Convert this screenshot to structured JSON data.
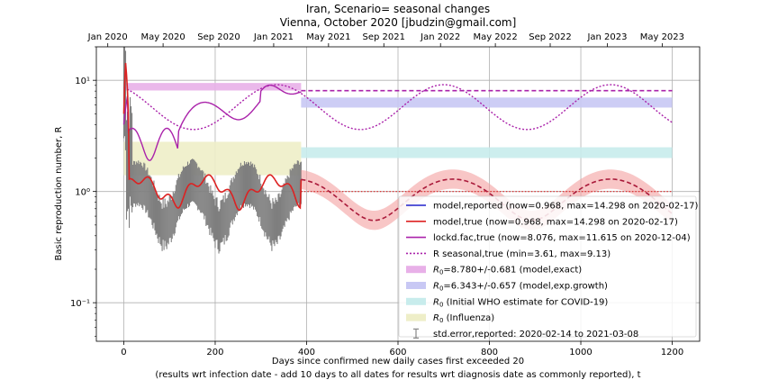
{
  "chart_data": {
    "type": "line",
    "title": "Iran, Scenario= seasonal changes",
    "subtitle": "Vienna, October 2020 [jbudzin@gmail.com]",
    "xlabel": "Days since confirmed new daily cases first exceeded 20",
    "xlabel2": "(results wrt infection date - add 10 days to all dates for results wrt diagnosis date as commonly reported), t",
    "ylabel": "Basic reproduction number, R",
    "xlim": [
      -60,
      1260
    ],
    "ylim": [
      0.045,
      20
    ],
    "yscale": "log",
    "x_ticks": [
      0,
      200,
      400,
      600,
      800,
      1000,
      1200
    ],
    "x_tick_labels": [
      "0",
      "200",
      "400",
      "600",
      "800",
      "1000",
      "1200"
    ],
    "y_ticks": [
      0.1,
      1,
      10
    ],
    "y_tick_labels": [
      "10⁻¹",
      "10⁰",
      "10¹"
    ],
    "top_axis": {
      "tick_days": [
        -35,
        86,
        208,
        328,
        448,
        569,
        693,
        813,
        933,
        1058,
        1178
      ],
      "tick_labels": [
        "Jan 2020",
        "May 2020",
        "Sep 2020",
        "Jan 2021",
        "May 2021",
        "Sep 2021",
        "Jan 2022",
        "May 2022",
        "Sep 2022",
        "Jan 2023",
        "May 2023"
      ]
    },
    "grid": true,
    "legend_position": "lower-right",
    "bands": [
      {
        "name": "R0=8.780+/-0.681 (model,exact)",
        "x": [
          0,
          388
        ],
        "y": [
          8.099,
          9.461
        ],
        "color": "#e8b0e8"
      },
      {
        "name": "R0=6.343+/-0.657 (model,exp.growth)",
        "x": [
          388,
          1200
        ],
        "y": [
          5.686,
          7.0
        ],
        "color": "#c8c8f4"
      },
      {
        "name": "R0 (Initial WHO estimate for COVID-19)",
        "x": [
          388,
          1200
        ],
        "y": [
          2.0,
          2.5
        ],
        "color": "#c8ecec"
      },
      {
        "name": "R0 (Influenza)",
        "x": [
          0,
          388
        ],
        "y": [
          1.4,
          2.8
        ],
        "color": "#eeeec8"
      }
    ],
    "series": [
      {
        "name": "model,reported (now=0.968, max=14.298 on 2020-02-17)",
        "color": "#2222cc",
        "style": "solid"
      },
      {
        "name": "model,true (now=0.968, max=14.298 on 2020-02-17)",
        "color": "#dd2222",
        "style": "solid"
      },
      {
        "name": "lockd.fac,true (now=8.076, max=11.615 on 2020-12-04)",
        "color": "#aa22aa",
        "style": "solid"
      },
      {
        "name": "R seasonal,true (min=3.61, max=9.13)",
        "color": "#aa22aa",
        "style": "dotted"
      }
    ],
    "errorbar_label": "std.error,reported: 2020-02-14 to 2021-03-08",
    "legend_entries": [
      {
        "label": "model,reported (now=0.968, max=14.298 on 2020-02-17)",
        "kind": "line",
        "color": "#2222cc",
        "dash": ""
      },
      {
        "label": "model,true (now=0.968, max=14.298 on 2020-02-17)",
        "kind": "line",
        "color": "#dd2222",
        "dash": ""
      },
      {
        "label": "lockd.fac,true (now=8.076, max=11.615 on 2020-12-04)",
        "kind": "line",
        "color": "#aa22aa",
        "dash": ""
      },
      {
        "label": "R seasonal,true (min=3.61, max=9.13)",
        "kind": "line",
        "color": "#aa22aa",
        "dash": "2,2"
      },
      {
        "label": "=8.780+/-0.681 (model,exact)",
        "kind": "band",
        "color": "#e8b0e8"
      },
      {
        "label": "=6.343+/-0.657 (model,exp.growth)",
        "kind": "band",
        "color": "#c8c8f4"
      },
      {
        "label": "(Initial WHO estimate for COVID-19)",
        "kind": "band",
        "color": "#c8ecec"
      },
      {
        "label": "(Influenza)",
        "kind": "band",
        "color": "#eeeec8"
      },
      {
        "label": "std.error,reported: 2020-02-14 to 2021-03-08",
        "kind": "errbar",
        "color": "#888888"
      }
    ],
    "legend_r0_prefix": "R",
    "legend_r0_sub": "0"
  }
}
